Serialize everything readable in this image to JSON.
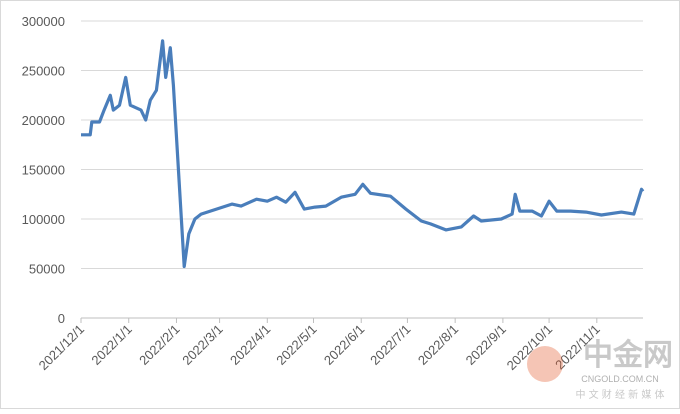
{
  "chart_data": {
    "type": "line",
    "x": [
      "2021/12/1",
      "2021/12/7",
      "2021/12/8",
      "2021/12/13",
      "2021/12/16",
      "2021/12/20",
      "2021/12/22",
      "2021/12/26",
      "2021/12/30",
      "2022/1/2",
      "2022/1/9",
      "2022/1/12",
      "2022/1/15",
      "2022/1/19",
      "2022/1/23",
      "2022/1/25",
      "2022/1/28",
      "2022/1/30",
      "2022/2/6",
      "2022/2/9",
      "2022/2/13",
      "2022/2/17",
      "2022/2/27",
      "2022/3/9",
      "2022/3/15",
      "2022/3/25",
      "2022/4/1",
      "2022/4/7",
      "2022/4/13",
      "2022/4/19",
      "2022/4/25",
      "2022/5/2",
      "2022/5/9",
      "2022/5/19",
      "2022/5/28",
      "2022/6/2",
      "2022/6/7",
      "2022/6/20",
      "2022/6/30",
      "2022/7/10",
      "2022/7/16",
      "2022/7/26",
      "2022/8/5",
      "2022/8/13",
      "2022/8/18",
      "2022/8/31",
      "2022/9/7",
      "2022/9/9",
      "2022/9/12",
      "2022/9/20",
      "2022/9/26",
      "2022/10/1",
      "2022/10/6",
      "2022/10/15",
      "2022/10/25",
      "2022/11/4",
      "2022/11/17",
      "2022/11/25",
      "2022/11/30",
      "2022/12/1"
    ],
    "series": [
      {
        "color": "#4a7ebb",
        "values": [
          185000,
          185000,
          198000,
          198000,
          210000,
          225000,
          210000,
          215000,
          243000,
          215000,
          210000,
          200000,
          220000,
          230000,
          280000,
          243000,
          273000,
          235000,
          52000,
          85000,
          100000,
          105000,
          110000,
          115000,
          113000,
          120000,
          118000,
          122000,
          117000,
          127000,
          110000,
          112000,
          113000,
          122000,
          125000,
          135000,
          126000,
          123000,
          110000,
          98000,
          95000,
          89000,
          92000,
          103000,
          98000,
          100000,
          105000,
          125000,
          108000,
          108000,
          103000,
          118000,
          108000,
          108000,
          107000,
          104000,
          107000,
          105000,
          130000,
          128000
        ]
      }
    ],
    "xlim": [
      "2021/12/1",
      "2022/12/1"
    ],
    "xticks": [
      "2021/12/1",
      "2022/1/1",
      "2022/2/1",
      "2022/3/1",
      "2022/4/1",
      "2022/5/1",
      "2022/6/1",
      "2022/7/1",
      "2022/8/1",
      "2022/9/1",
      "2022/10/1",
      "2022/11/1"
    ],
    "ylim": [
      0,
      300000
    ],
    "yticks": [
      0,
      50000,
      100000,
      150000,
      200000,
      250000,
      300000
    ],
    "grid": true
  },
  "watermark": {
    "brand": "中金网",
    "site": "CNGOLD.COM.CN",
    "slogan": "中 文 财 经 新 媒 体"
  }
}
